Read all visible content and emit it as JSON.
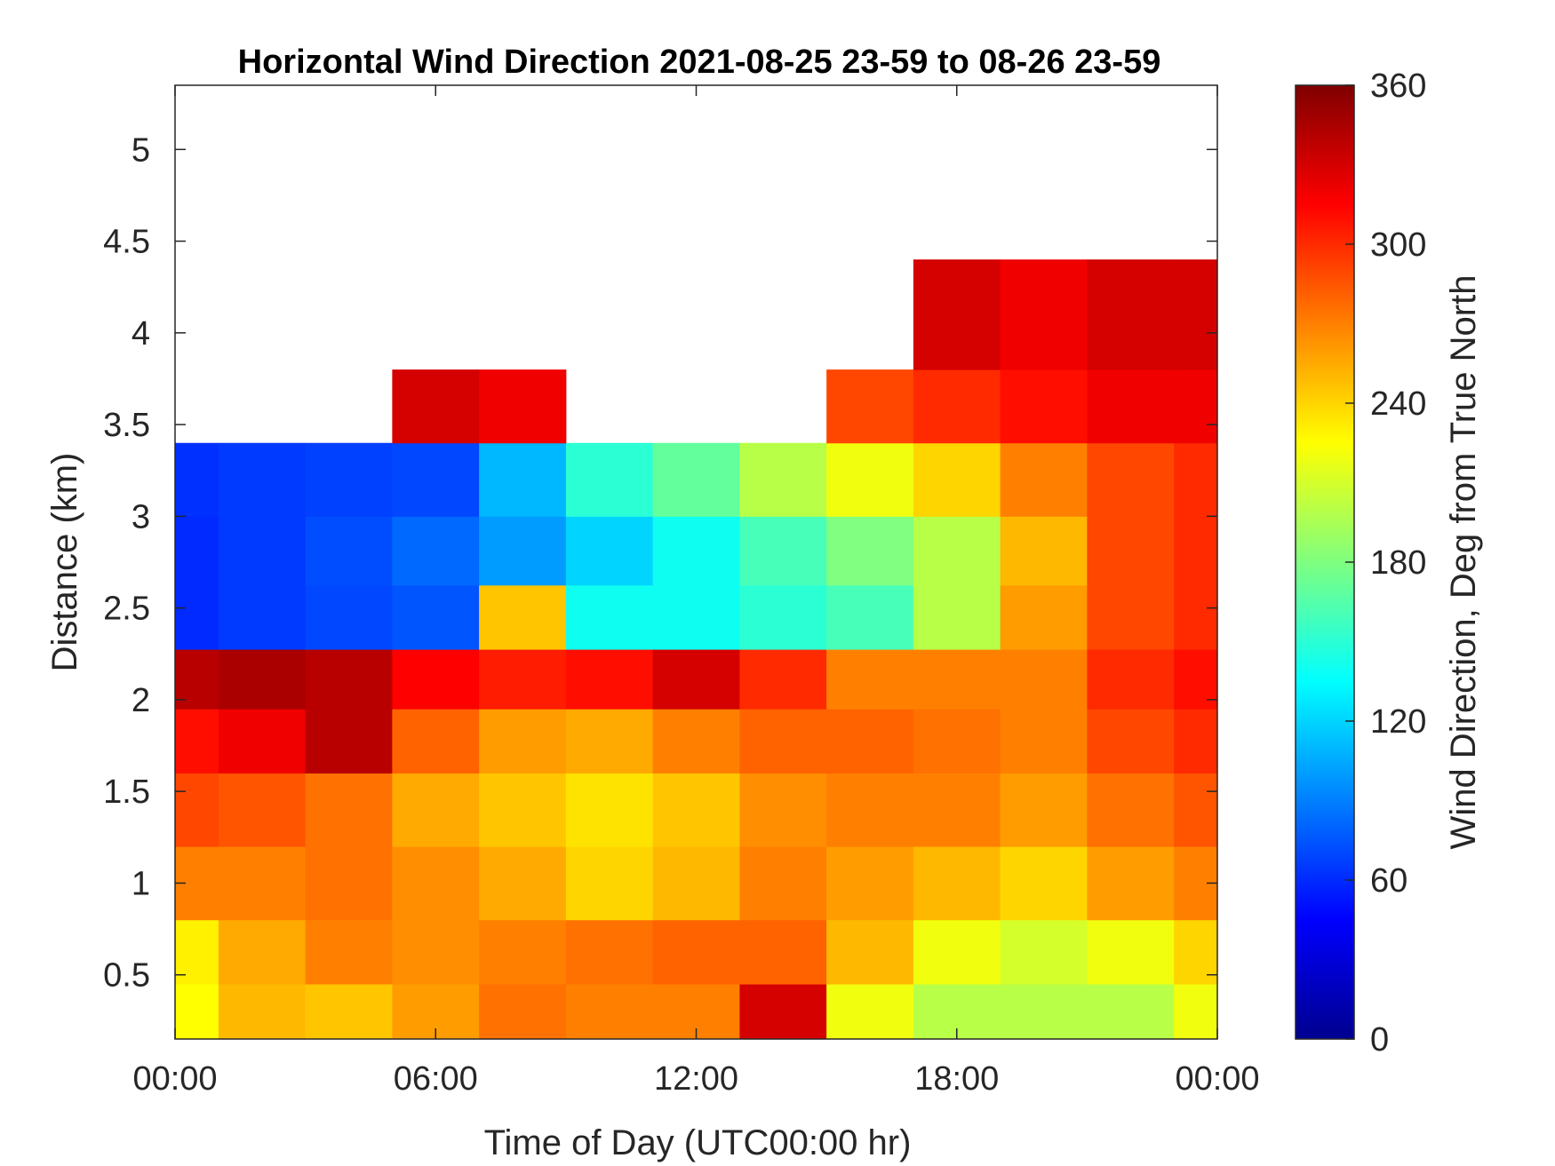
{
  "chart_data": {
    "type": "heatmap",
    "title": "Horizontal Wind Direction 2021-08-25 23-59 to 08-26 23-59",
    "xlabel": "Time of Day (UTC00:00 hr)",
    "ylabel": "Distance (km)",
    "colorbar_label": "Wind Direction, Deg from True North",
    "colormap": "jet",
    "colors": {
      "jet": [
        "#00008f",
        "#0000ff",
        "#00ffff",
        "#ffff00",
        "#ff0000",
        "#800000"
      ],
      "axes": "#262626",
      "background": "#ffffff"
    },
    "xlim": [
      0,
      24
    ],
    "x_unit": "hours",
    "x_ticks": [
      0,
      6,
      12,
      18,
      24
    ],
    "x_tick_labels": [
      "00:00",
      "06:00",
      "12:00",
      "18:00",
      "00:00"
    ],
    "ylim": [
      0.15,
      5.35
    ],
    "y_ticks": [
      0.5,
      1,
      1.5,
      2,
      2.5,
      3,
      3.5,
      4,
      4.5,
      5
    ],
    "y_tick_labels": [
      "0.5",
      "1",
      "1.5",
      "2",
      "2.5",
      "3",
      "3.5",
      "4",
      "4.5",
      "5"
    ],
    "clim": [
      0,
      360
    ],
    "colorbar_ticks": [
      0,
      60,
      120,
      180,
      240,
      300,
      360
    ],
    "colorbar_tick_labels": [
      "0",
      "60",
      "120",
      "180",
      "240",
      "300",
      "360"
    ],
    "x_hours": [
      0,
      2,
      4,
      6,
      8,
      10,
      12,
      14,
      16,
      18,
      20,
      22,
      24
    ],
    "y_km": [
      0.3,
      0.6,
      1.0,
      1.4,
      1.8,
      2.1,
      2.45,
      2.8,
      3.2,
      3.6,
      4.0
    ],
    "direction_deg": [
      [
        225,
        250,
        245,
        260,
        275,
        270,
        270,
        330,
        220,
        200,
        200,
        200,
        220
      ],
      [
        230,
        255,
        270,
        265,
        270,
        275,
        280,
        280,
        250,
        220,
        210,
        220,
        240
      ],
      [
        270,
        270,
        275,
        265,
        255,
        240,
        250,
        270,
        260,
        250,
        240,
        260,
        270
      ],
      [
        290,
        285,
        275,
        255,
        245,
        235,
        245,
        265,
        270,
        270,
        260,
        275,
        285
      ],
      [
        310,
        320,
        340,
        280,
        260,
        255,
        270,
        280,
        280,
        275,
        270,
        290,
        300
      ],
      [
        340,
        345,
        340,
        315,
        305,
        310,
        330,
        300,
        270,
        270,
        270,
        300,
        310
      ],
      [
        60,
        65,
        70,
        75,
        245,
        140,
        140,
        150,
        160,
        200,
        260,
        290,
        300
      ],
      [
        60,
        65,
        72,
        82,
        100,
        120,
        140,
        160,
        180,
        200,
        250,
        290,
        300
      ],
      [
        62,
        65,
        68,
        70,
        110,
        150,
        170,
        200,
        220,
        240,
        270,
        290,
        300
      ],
      [
        null,
        null,
        null,
        330,
        320,
        null,
        null,
        null,
        290,
        300,
        310,
        320,
        320
      ],
      [
        null,
        null,
        null,
        null,
        null,
        null,
        null,
        null,
        null,
        330,
        320,
        330,
        330
      ]
    ]
  }
}
